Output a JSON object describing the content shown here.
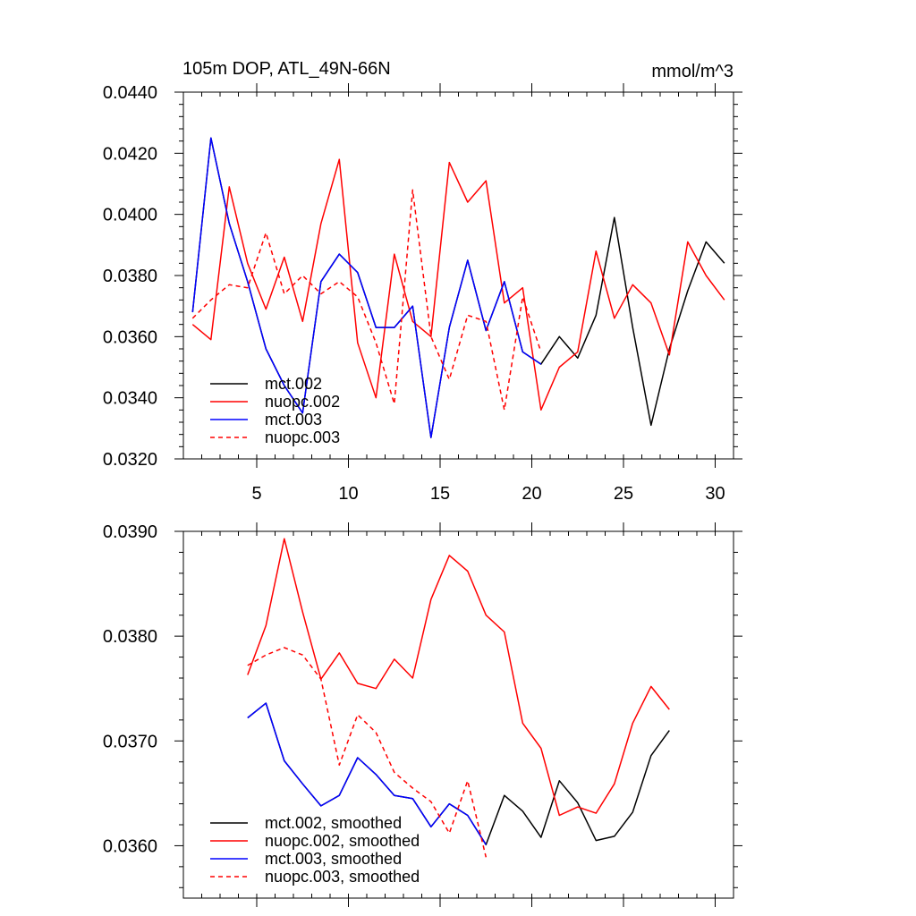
{
  "chart_data": [
    {
      "type": "line",
      "title": "105m DOP, ATL_49N-66N",
      "units": "mmol/m^3",
      "xlim": [
        1,
        31
      ],
      "ylim": [
        0.032,
        0.044
      ],
      "xticks": [
        5,
        10,
        15,
        20,
        25,
        30
      ],
      "yticks": [
        0.032,
        0.034,
        0.036,
        0.038,
        0.04,
        0.042,
        0.044
      ],
      "ytick_labels": [
        "0.0320",
        "0.0340",
        "0.0360",
        "0.0380",
        "0.0400",
        "0.0420",
        "0.0440"
      ],
      "legend_position": "bottom-left",
      "series": [
        {
          "name": "mct.002",
          "color": "#000000",
          "dash": "solid",
          "x": [
            1.5,
            2.5,
            3.5,
            4.5,
            5.5,
            6.5,
            7.5,
            8.5,
            9.5,
            10.5,
            11.5,
            12.5,
            13.5,
            14.5,
            15.5,
            16.5,
            17.5,
            18.5,
            19.5,
            20.5,
            21.5,
            22.5,
            23.5,
            24.5,
            25.5,
            26.5,
            27.5,
            28.5,
            29.5,
            30.5
          ],
          "values": [
            0.0368,
            0.0425,
            0.0397,
            0.0378,
            0.0356,
            0.0344,
            0.0335,
            0.0378,
            0.0387,
            0.0381,
            0.0363,
            0.0363,
            0.037,
            0.0327,
            0.0363,
            0.0385,
            0.0362,
            0.0378,
            0.0355,
            0.0351,
            0.036,
            0.0353,
            0.0367,
            0.0399,
            0.0363,
            0.0331,
            0.0356,
            0.0375,
            0.0391,
            0.0384
          ]
        },
        {
          "name": "nuopc.002",
          "color": "#ff0000",
          "dash": "solid",
          "x": [
            1.5,
            2.5,
            3.5,
            4.5,
            5.5,
            6.5,
            7.5,
            8.5,
            9.5,
            10.5,
            11.5,
            12.5,
            13.5,
            14.5,
            15.5,
            16.5,
            17.5,
            18.5,
            19.5,
            20.5,
            21.5,
            22.5,
            23.5,
            24.5,
            25.5,
            26.5,
            27.5,
            28.5,
            29.5,
            30.5
          ],
          "values": [
            0.0364,
            0.0359,
            0.0409,
            0.0384,
            0.0369,
            0.0386,
            0.0365,
            0.0397,
            0.0418,
            0.0358,
            0.034,
            0.0387,
            0.0365,
            0.036,
            0.0417,
            0.0404,
            0.0411,
            0.0371,
            0.0376,
            0.0336,
            0.035,
            0.0355,
            0.0388,
            0.0366,
            0.0377,
            0.0371,
            0.0354,
            0.0391,
            0.038,
            0.0372
          ]
        },
        {
          "name": "mct.003",
          "color": "#0000ff",
          "dash": "solid",
          "x": [
            1.5,
            2.5,
            3.5,
            4.5,
            5.5,
            6.5,
            7.5,
            8.5,
            9.5,
            10.5,
            11.5,
            12.5,
            13.5,
            14.5,
            15.5,
            16.5,
            17.5,
            18.5,
            19.5,
            20.5
          ],
          "values": [
            0.0368,
            0.0425,
            0.0397,
            0.0378,
            0.0356,
            0.0344,
            0.0335,
            0.0378,
            0.0387,
            0.0381,
            0.0363,
            0.0363,
            0.037,
            0.0327,
            0.0363,
            0.0385,
            0.0362,
            0.0378,
            0.0355,
            0.0351
          ]
        },
        {
          "name": "nuopc.003",
          "color": "#ff0000",
          "dash": "dashed",
          "x": [
            1.5,
            2.5,
            3.5,
            4.5,
            5.5,
            6.5,
            7.5,
            8.5,
            9.5,
            10.5,
            11.5,
            12.5,
            13.5,
            14.5,
            15.5,
            16.5,
            17.5,
            18.5,
            19.5,
            20.5
          ],
          "values": [
            0.0366,
            0.0372,
            0.0377,
            0.0376,
            0.0394,
            0.0374,
            0.038,
            0.0374,
            0.0378,
            0.0373,
            0.0358,
            0.0338,
            0.0408,
            0.036,
            0.0346,
            0.0367,
            0.0365,
            0.0336,
            0.0373,
            0.0355
          ]
        }
      ]
    },
    {
      "type": "line",
      "title": "",
      "xlim": [
        1,
        31
      ],
      "ylim": [
        0.0355,
        0.039
      ],
      "xticks": [
        5,
        10,
        15,
        20,
        25,
        30
      ],
      "yticks": [
        0.036,
        0.037,
        0.038,
        0.039
      ],
      "ytick_labels": [
        "0.0360",
        "0.0370",
        "0.0380",
        "0.0390"
      ],
      "legend_position": "bottom-left",
      "series": [
        {
          "name": "mct.002, smoothed",
          "color": "#000000",
          "dash": "solid",
          "x": [
            4.5,
            5.5,
            6.5,
            7.5,
            8.5,
            9.5,
            10.5,
            11.5,
            12.5,
            13.5,
            14.5,
            15.5,
            16.5,
            17.5,
            18.5,
            19.5,
            20.5,
            21.5,
            22.5,
            23.5,
            24.5,
            25.5,
            26.5,
            27.5
          ],
          "values": [
            0.03722,
            0.03736,
            0.03681,
            0.03659,
            0.03638,
            0.03648,
            0.03684,
            0.03668,
            0.03648,
            0.03645,
            0.03618,
            0.0364,
            0.03629,
            0.03601,
            0.03648,
            0.03633,
            0.03608,
            0.03662,
            0.03641,
            0.03605,
            0.03609,
            0.03632,
            0.03686,
            0.0371
          ]
        },
        {
          "name": "nuopc.002, smoothed",
          "color": "#ff0000",
          "dash": "solid",
          "x": [
            4.5,
            5.5,
            6.5,
            7.5,
            8.5,
            9.5,
            10.5,
            11.5,
            12.5,
            13.5,
            14.5,
            15.5,
            16.5,
            17.5,
            18.5,
            19.5,
            20.5,
            21.5,
            22.5,
            23.5,
            24.5,
            25.5,
            26.5,
            27.5
          ],
          "values": [
            0.03763,
            0.0381,
            0.03893,
            0.03823,
            0.03759,
            0.03784,
            0.03755,
            0.0375,
            0.03778,
            0.0376,
            0.03835,
            0.03877,
            0.03862,
            0.0382,
            0.03804,
            0.03717,
            0.03693,
            0.03629,
            0.03637,
            0.03631,
            0.03659,
            0.03717,
            0.03752,
            0.0373
          ]
        },
        {
          "name": "mct.003, smoothed",
          "color": "#0000ff",
          "dash": "solid",
          "x": [
            4.5,
            5.5,
            6.5,
            7.5,
            8.5,
            9.5,
            10.5,
            11.5,
            12.5,
            13.5,
            14.5,
            15.5,
            16.5,
            17.5
          ],
          "values": [
            0.03722,
            0.03736,
            0.03681,
            0.03659,
            0.03638,
            0.03648,
            0.03684,
            0.03668,
            0.03648,
            0.03645,
            0.03618,
            0.0364,
            0.03629,
            0.03601
          ]
        },
        {
          "name": "nuopc.003, smoothed",
          "color": "#ff0000",
          "dash": "dashed",
          "x": [
            4.5,
            5.5,
            6.5,
            7.5,
            8.5,
            9.5,
            10.5,
            11.5,
            12.5,
            13.5,
            14.5,
            15.5,
            16.5,
            17.5
          ],
          "values": [
            0.03772,
            0.03782,
            0.03789,
            0.03782,
            0.03759,
            0.03677,
            0.03725,
            0.03708,
            0.0367,
            0.03655,
            0.03642,
            0.03612,
            0.03662,
            0.03589
          ]
        }
      ]
    }
  ]
}
